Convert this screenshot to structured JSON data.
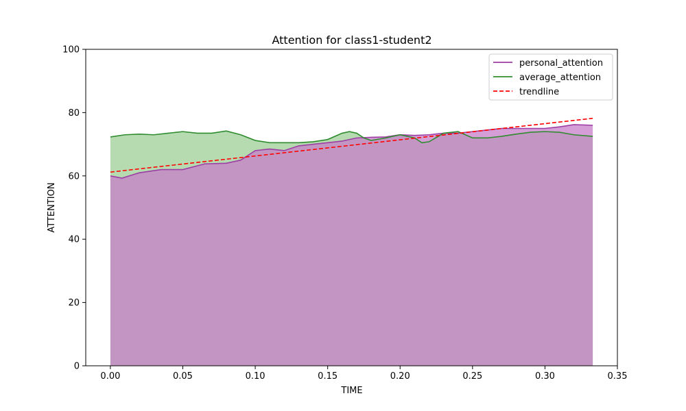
{
  "chart_data": {
    "type": "area",
    "title": "Attention for class1-student2",
    "xlabel": "TIME",
    "ylabel": "ATTENTION",
    "xlim": [
      -0.017,
      0.35
    ],
    "ylim": [
      0,
      100
    ],
    "xticks": [
      "0.00",
      "0.05",
      "0.10",
      "0.15",
      "0.20",
      "0.25",
      "0.30",
      "0.35"
    ],
    "yticks": [
      "0",
      "20",
      "40",
      "60",
      "80",
      "100"
    ],
    "grid": false,
    "legend_position": "top-right",
    "series": [
      {
        "name": "personal_attention",
        "color": "#9b3da3",
        "fill": "#c77ec9",
        "x": [
          0.0,
          0.008,
          0.02,
          0.035,
          0.05,
          0.065,
          0.08,
          0.09,
          0.1,
          0.11,
          0.12,
          0.13,
          0.14,
          0.15,
          0.16,
          0.17,
          0.18,
          0.19,
          0.2,
          0.21,
          0.22,
          0.23,
          0.24,
          0.25,
          0.26,
          0.27,
          0.28,
          0.29,
          0.3,
          0.31,
          0.32,
          0.333
        ],
        "values": [
          60.0,
          59.3,
          61.0,
          62.0,
          62.0,
          63.8,
          64.0,
          65.0,
          68.0,
          68.5,
          68.0,
          69.5,
          70.0,
          70.5,
          71.0,
          72.0,
          72.2,
          72.3,
          73.0,
          72.8,
          73.0,
          73.5,
          73.5,
          74.0,
          74.5,
          75.0,
          75.0,
          75.0,
          75.0,
          75.5,
          76.2,
          76.0
        ]
      },
      {
        "name": "average_attention",
        "color": "#2e8b2e",
        "fill": "#9fcf97",
        "x": [
          0.0,
          0.01,
          0.02,
          0.03,
          0.04,
          0.05,
          0.06,
          0.07,
          0.08,
          0.09,
          0.1,
          0.11,
          0.12,
          0.13,
          0.14,
          0.15,
          0.16,
          0.165,
          0.17,
          0.175,
          0.18,
          0.19,
          0.2,
          0.21,
          0.215,
          0.22,
          0.23,
          0.24,
          0.25,
          0.26,
          0.27,
          0.28,
          0.29,
          0.3,
          0.31,
          0.32,
          0.333
        ],
        "values": [
          72.3,
          73.0,
          73.2,
          73.0,
          73.5,
          74.0,
          73.5,
          73.5,
          74.2,
          73.0,
          71.2,
          70.5,
          70.5,
          70.5,
          70.8,
          71.5,
          73.5,
          74.0,
          73.5,
          72.0,
          71.2,
          72.0,
          73.0,
          72.0,
          70.5,
          70.8,
          73.5,
          74.0,
          72.0,
          72.0,
          72.5,
          73.2,
          73.8,
          74.0,
          73.8,
          73.0,
          72.5
        ]
      },
      {
        "name": "trendline",
        "color": "#ff0000",
        "style": "dashed",
        "x": [
          0.0,
          0.333
        ],
        "values": [
          61.2,
          78.2
        ]
      }
    ]
  }
}
